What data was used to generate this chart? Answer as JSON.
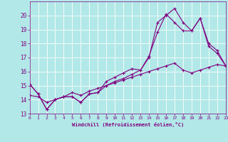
{
  "xlabel": "Windchill (Refroidissement éolien,°C)",
  "xlim": [
    0,
    23
  ],
  "ylim": [
    13,
    21
  ],
  "yticks": [
    13,
    14,
    15,
    16,
    17,
    18,
    19,
    20
  ],
  "xticks": [
    0,
    1,
    2,
    3,
    4,
    5,
    6,
    7,
    8,
    9,
    10,
    11,
    12,
    13,
    14,
    15,
    16,
    17,
    18,
    19,
    20,
    21,
    22,
    23
  ],
  "bg_color": "#b2e8e8",
  "grid_color": "#ffffff",
  "line_color": "#800080",
  "line1_x": [
    0,
    1,
    2,
    3,
    4,
    5,
    6,
    7,
    8,
    9,
    10,
    11,
    12,
    13,
    14,
    15,
    16,
    17,
    18,
    19,
    20,
    21,
    22,
    23
  ],
  "line1_y": [
    15.1,
    14.4,
    13.3,
    14.0,
    14.2,
    14.2,
    13.8,
    14.4,
    14.5,
    15.3,
    15.6,
    15.9,
    16.2,
    16.1,
    17.0,
    19.5,
    20.0,
    20.5,
    19.5,
    18.9,
    19.8,
    18.0,
    17.5,
    16.4
  ],
  "line2_x": [
    0,
    1,
    2,
    3,
    4,
    5,
    6,
    7,
    8,
    9,
    10,
    11,
    12,
    13,
    14,
    15,
    16,
    17,
    18,
    19,
    20,
    21,
    22,
    23
  ],
  "line2_y": [
    15.1,
    14.4,
    13.3,
    14.0,
    14.2,
    14.2,
    13.8,
    14.4,
    14.5,
    15.0,
    15.3,
    15.5,
    15.8,
    16.1,
    17.1,
    18.8,
    20.1,
    19.5,
    18.9,
    18.9,
    19.8,
    17.8,
    17.3,
    16.4
  ],
  "line3_x": [
    0,
    1,
    2,
    3,
    4,
    5,
    6,
    7,
    8,
    9,
    10,
    11,
    12,
    13,
    14,
    15,
    16,
    17,
    18,
    19,
    20,
    21,
    22,
    23
  ],
  "line3_y": [
    14.3,
    14.2,
    13.8,
    14.0,
    14.2,
    14.5,
    14.3,
    14.6,
    14.8,
    15.0,
    15.2,
    15.4,
    15.6,
    15.8,
    16.0,
    16.2,
    16.4,
    16.6,
    16.1,
    15.9,
    16.1,
    16.3,
    16.5,
    16.4
  ]
}
